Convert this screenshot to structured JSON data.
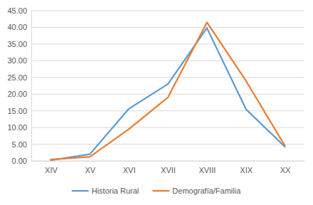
{
  "chart_data": {
    "type": "line",
    "categories": [
      "XIV",
      "XV",
      "XVI",
      "XVII",
      "XVIII",
      "XIX",
      "XX"
    ],
    "series": [
      {
        "name": "Historia Rural",
        "color": "#5b9bd5",
        "values": [
          0.2,
          2.0,
          15.6,
          23.0,
          39.8,
          15.5,
          4.2
        ]
      },
      {
        "name": "Demografía/Familia",
        "color": "#ed7d31",
        "values": [
          0.4,
          1.2,
          9.5,
          19.0,
          41.5,
          24.0,
          4.5
        ]
      }
    ],
    "ylim": [
      0,
      45
    ],
    "yticks": [
      {
        "value": 0,
        "label": "0.00"
      },
      {
        "value": 5,
        "label": "5.00"
      },
      {
        "value": 10,
        "label": "10.00"
      },
      {
        "value": 15,
        "label": "15.00"
      },
      {
        "value": 20,
        "label": "20.00"
      },
      {
        "value": 25,
        "label": "25.00"
      },
      {
        "value": 30,
        "label": "30.00"
      },
      {
        "value": 35,
        "label": "35.00"
      },
      {
        "value": 40,
        "label": "40.00"
      },
      {
        "value": 45,
        "label": "45.00"
      }
    ],
    "grid": true,
    "legend": "bottom"
  }
}
